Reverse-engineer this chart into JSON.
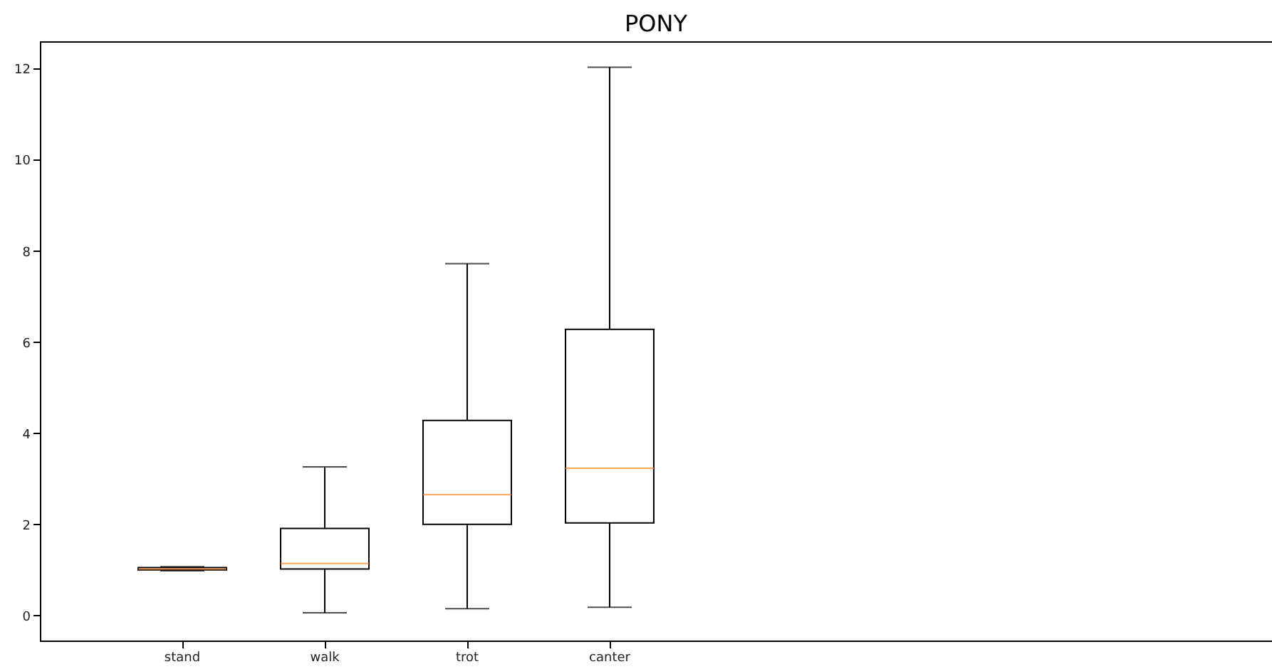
{
  "chart_data": {
    "type": "box",
    "title": "PONY",
    "categories": [
      "stand",
      "walk",
      "trot",
      "canter"
    ],
    "boxes": [
      {
        "low": 0.98,
        "q1": 1.0,
        "median": 1.02,
        "q3": 1.05,
        "high": 1.07
      },
      {
        "low": 0.06,
        "q1": 1.02,
        "median": 1.14,
        "q3": 1.91,
        "high": 3.26
      },
      {
        "low": 0.15,
        "q1": 2.0,
        "median": 2.65,
        "q3": 4.28,
        "high": 7.72
      },
      {
        "low": 0.18,
        "q1": 2.03,
        "median": 3.23,
        "q3": 6.28,
        "high": 12.03
      }
    ],
    "ylim": [
      -0.55,
      12.6
    ],
    "yticks": [
      0,
      2,
      4,
      6,
      8,
      10,
      12
    ],
    "grid": false
  }
}
